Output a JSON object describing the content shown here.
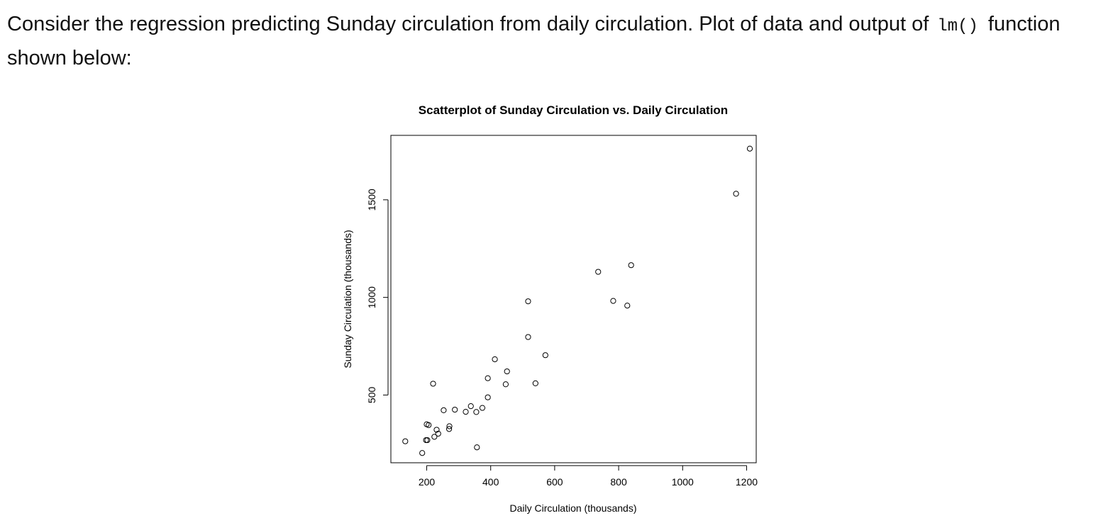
{
  "question": {
    "prefix": "Consider the regression predicting Sunday circulation from daily circulation. Plot of data and output of",
    "code": "lm()",
    "suffix": "function",
    "line2": "shown below:"
  },
  "chart_data": {
    "type": "scatter",
    "title": "Scatterplot of Sunday Circulation vs. Daily Circulation",
    "xlabel": "Daily Circulation (thousands)",
    "ylabel": "Sunday Circulation (thousands)",
    "xlim": [
      88,
      1230
    ],
    "ylim": [
      153,
      1830
    ],
    "xticks": [
      200,
      400,
      600,
      800,
      1000,
      1200
    ],
    "yticks": [
      500,
      1000,
      1500
    ],
    "grid": false,
    "marker": "open-circle",
    "points": [
      {
        "x": 133,
        "y": 263
      },
      {
        "x": 186,
        "y": 203
      },
      {
        "x": 198,
        "y": 269
      },
      {
        "x": 200,
        "y": 350
      },
      {
        "x": 202,
        "y": 269
      },
      {
        "x": 206,
        "y": 346
      },
      {
        "x": 220,
        "y": 558
      },
      {
        "x": 224,
        "y": 286
      },
      {
        "x": 231,
        "y": 322
      },
      {
        "x": 236,
        "y": 302
      },
      {
        "x": 253,
        "y": 422
      },
      {
        "x": 270,
        "y": 326
      },
      {
        "x": 271,
        "y": 340
      },
      {
        "x": 288,
        "y": 425
      },
      {
        "x": 322,
        "y": 414
      },
      {
        "x": 338,
        "y": 443
      },
      {
        "x": 355,
        "y": 413
      },
      {
        "x": 357,
        "y": 232
      },
      {
        "x": 374,
        "y": 434
      },
      {
        "x": 391,
        "y": 586
      },
      {
        "x": 391,
        "y": 488
      },
      {
        "x": 413,
        "y": 683
      },
      {
        "x": 447,
        "y": 555
      },
      {
        "x": 451,
        "y": 621
      },
      {
        "x": 517,
        "y": 980
      },
      {
        "x": 517,
        "y": 797
      },
      {
        "x": 540,
        "y": 560
      },
      {
        "x": 571,
        "y": 704
      },
      {
        "x": 736,
        "y": 1131
      },
      {
        "x": 783,
        "y": 982
      },
      {
        "x": 827,
        "y": 958
      },
      {
        "x": 839,
        "y": 1165
      },
      {
        "x": 1167,
        "y": 1531
      },
      {
        "x": 1210,
        "y": 1762
      }
    ]
  }
}
